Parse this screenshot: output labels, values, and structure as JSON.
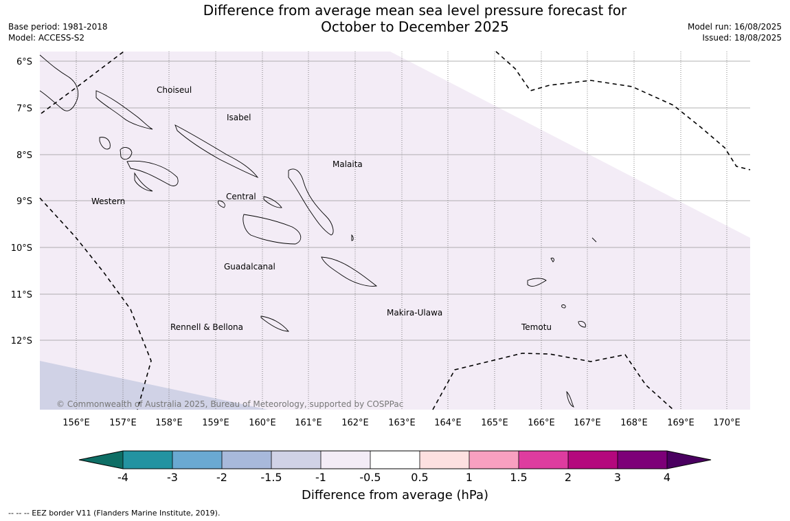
{
  "title_line1": "Difference from average mean sea level pressure forecast for",
  "title_line2": "October to December 2025",
  "base_period": "Base period: 1981-2018",
  "model": "Model: ACCESS-S2",
  "model_run": "Model run: 16/08/2025",
  "issued": "Issued: 18/08/2025",
  "copyright": "© Commonwealth of Australia 2025, Bureau of Meteorology, supported by COSPPac",
  "colorbar_label": "Difference from average (hPa)",
  "footnote": "--  --  -- EEZ border V11 (Flanders Marine Institute, 2019).",
  "lat_labels": [
    "6°S",
    "7°S",
    "8°S",
    "9°S",
    "10°S",
    "11°S",
    "12°S"
  ],
  "lon_labels": [
    "156°E",
    "157°E",
    "158°E",
    "159°E",
    "160°E",
    "161°E",
    "162°E",
    "163°E",
    "164°E",
    "165°E",
    "166°E",
    "167°E",
    "168°E",
    "169°E",
    "170°E"
  ],
  "provinces": [
    "Choiseul",
    "Isabel",
    "Malaita",
    "Western",
    "Central",
    "Guadalcanal",
    "Makira-Ulawa",
    "Rennell & Bellona",
    "Temotu"
  ],
  "colorbar": {
    "ticks": [
      "-4",
      "-3",
      "-2",
      "-1.5",
      "-1",
      "-0.5",
      "0.5",
      "1",
      "1.5",
      "2",
      "3",
      "4"
    ],
    "colors": [
      "#0e6e65",
      "#2393a1",
      "#6aa9d2",
      "#a8b9db",
      "#d0d2e6",
      "#f3ecf6",
      "#ffffff",
      "#fde0e0",
      "#f8a0c0",
      "#de3c9f",
      "#b4087d",
      "#7d0078",
      "#4a0060"
    ]
  },
  "legend_colors": {
    "main_fill": "#f3ecf6",
    "lower_left_fill": "#d0d2e6",
    "no_change": "#ffffff"
  }
}
